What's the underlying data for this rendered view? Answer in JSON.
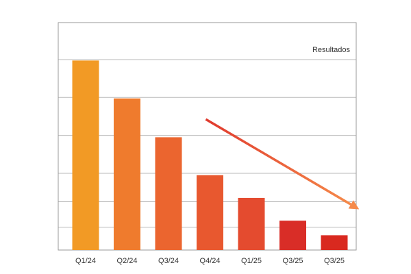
{
  "chart_data": {
    "type": "bar",
    "title": "",
    "xlabel": "",
    "ylabel": "",
    "categories": [
      "Q1/24",
      "Q2/24",
      "Q3/24",
      "Q4/24",
      "Q1/25",
      "Q3/25",
      "Q3/25"
    ],
    "values": [
      100,
      80,
      59.5,
      39.5,
      27.5,
      15.5,
      7.8
    ],
    "ylim": [
      0,
      120
    ],
    "grid_y": [
      0,
      12,
      25.5,
      40.5,
      60.5,
      80.5,
      100.5,
      120
    ],
    "grid": true,
    "legend_text": "Resultados",
    "legend_placement": "top-right",
    "trend": {
      "from": {
        "x_index": 2.9,
        "y": 69
      },
      "to": {
        "x_index": 6.6,
        "y": 21.5
      },
      "color_start": "#e03a2e",
      "color_end": "#f58a4a"
    },
    "bar_colors": [
      "#f29a25",
      "#ef7b2d",
      "#eb652f",
      "#e8582f",
      "#e44b2f",
      "#d92d27",
      "#d9291f"
    ],
    "colors": {
      "grid": "#b8b8b8",
      "frame": "#9a9a9a",
      "text": "#333333"
    }
  }
}
